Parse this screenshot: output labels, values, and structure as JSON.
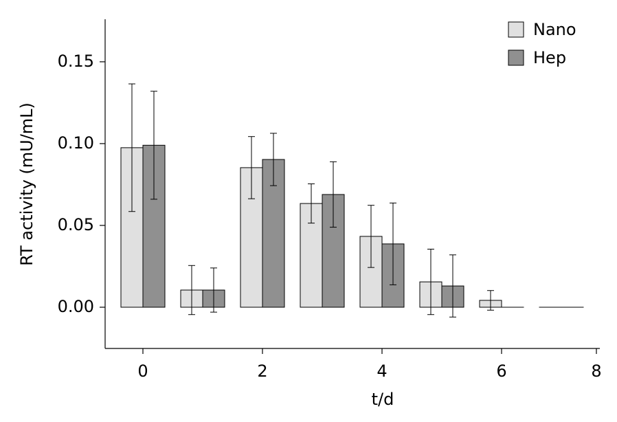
{
  "chart_data": {
    "type": "bar",
    "y_label": "RT activity (mU/mL)",
    "x_label": "t/d",
    "categories": [
      "0",
      null,
      "2",
      null,
      "4",
      null,
      "6",
      null
    ],
    "x_end_tick": "8",
    "series": [
      {
        "name": "Nano",
        "color": "#e0e0e0",
        "values": [
          0.0975,
          0.0105,
          0.0853,
          0.0634,
          0.0433,
          0.0155,
          0.0042,
          0
        ],
        "errors": [
          0.039,
          0.015,
          0.019,
          0.012,
          0.019,
          0.02,
          0.006,
          0
        ]
      },
      {
        "name": "Hep",
        "color": "#909090",
        "values": [
          0.099,
          0.0105,
          0.0903,
          0.0689,
          0.0387,
          0.013,
          0,
          0
        ],
        "errors": [
          0.033,
          0.0135,
          0.016,
          0.02,
          0.025,
          0.019,
          0,
          0
        ]
      }
    ],
    "ylim": [
      -0.0252,
      0.176
    ],
    "yticks": [
      {
        "value": 0,
        "label": "0.00"
      },
      {
        "value": 0.05,
        "label": "0.05"
      },
      {
        "value": 0.1,
        "label": "0.10"
      },
      {
        "value": 0.15,
        "label": "0.15"
      }
    ],
    "legend": "top-right"
  }
}
